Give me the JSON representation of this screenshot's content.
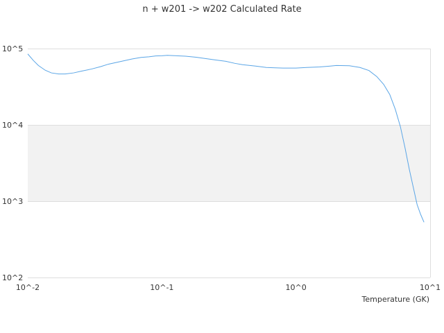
{
  "chart_data": {
    "type": "line",
    "title": "n + w201 -> w202 Calculated Rate",
    "xlabel": "Temperature (GK)",
    "ylabel": "",
    "x_scale": "log",
    "y_scale": "log",
    "xlim": [
      0.01,
      10
    ],
    "ylim": [
      100,
      100000
    ],
    "x_ticks": [
      {
        "value": 0.01,
        "label": "10^-2"
      },
      {
        "value": 0.1,
        "label": "10^-1"
      },
      {
        "value": 1,
        "label": "10^0"
      },
      {
        "value": 10,
        "label": "10^1"
      }
    ],
    "y_ticks": [
      {
        "value": 100,
        "label": "10^2"
      },
      {
        "value": 1000,
        "label": "10^3"
      },
      {
        "value": 10000,
        "label": "10^4"
      },
      {
        "value": 100000,
        "label": "10^5"
      }
    ],
    "grid": true,
    "band_fill": "#f2f2f2",
    "line_color": "#5aa5e6",
    "series": [
      {
        "name": "",
        "points": [
          [
            0.01,
            85000
          ],
          [
            0.011,
            70000
          ],
          [
            0.012,
            60000
          ],
          [
            0.0135,
            52000
          ],
          [
            0.015,
            48000
          ],
          [
            0.017,
            46500
          ],
          [
            0.019,
            46500
          ],
          [
            0.022,
            48000
          ],
          [
            0.025,
            50500
          ],
          [
            0.03,
            54000
          ],
          [
            0.035,
            58000
          ],
          [
            0.04,
            62500
          ],
          [
            0.05,
            68000
          ],
          [
            0.06,
            73000
          ],
          [
            0.07,
            76500
          ],
          [
            0.08,
            78000
          ],
          [
            0.09,
            80000
          ],
          [
            0.1,
            80500
          ],
          [
            0.11,
            81500
          ],
          [
            0.12,
            81000
          ],
          [
            0.15,
            79500
          ],
          [
            0.18,
            77000
          ],
          [
            0.2,
            75000
          ],
          [
            0.25,
            71000
          ],
          [
            0.3,
            68000
          ],
          [
            0.35,
            64000
          ],
          [
            0.4,
            61500
          ],
          [
            0.5,
            59000
          ],
          [
            0.6,
            56500
          ],
          [
            0.7,
            56000
          ],
          [
            0.8,
            55500
          ],
          [
            1.0,
            55500
          ],
          [
            1.2,
            56500
          ],
          [
            1.5,
            57500
          ],
          [
            1.8,
            59000
          ],
          [
            2.0,
            60000
          ],
          [
            2.5,
            59500
          ],
          [
            3.0,
            56500
          ],
          [
            3.5,
            51500
          ],
          [
            4.0,
            43000
          ],
          [
            4.5,
            34000
          ],
          [
            5.0,
            25000
          ],
          [
            5.5,
            16000
          ],
          [
            6.0,
            9500
          ],
          [
            6.5,
            5000
          ],
          [
            7.0,
            2600
          ],
          [
            7.5,
            1500
          ],
          [
            8.0,
            900
          ],
          [
            8.5,
            670
          ],
          [
            9.0,
            530
          ]
        ]
      }
    ]
  }
}
